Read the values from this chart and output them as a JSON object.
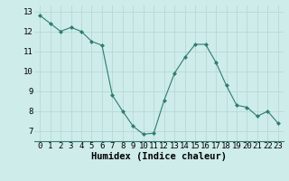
{
  "x": [
    0,
    1,
    2,
    3,
    4,
    5,
    6,
    7,
    8,
    9,
    10,
    11,
    12,
    13,
    14,
    15,
    16,
    17,
    18,
    19,
    20,
    21,
    22,
    23
  ],
  "y": [
    12.8,
    12.4,
    12.0,
    12.2,
    12.0,
    11.5,
    11.3,
    8.8,
    8.0,
    7.25,
    6.85,
    6.9,
    8.55,
    9.9,
    10.7,
    11.35,
    11.35,
    10.45,
    9.3,
    8.3,
    8.2,
    7.75,
    8.0,
    7.4
  ],
  "line_color": "#2e7d6e",
  "marker": "D",
  "marker_size": 2.0,
  "bg_color": "#ceecea",
  "grid_color": "#b8d8d5",
  "xlabel": "Humidex (Indice chaleur)",
  "xlabel_fontsize": 7.5,
  "tick_fontsize": 6.5,
  "ylim": [
    6.5,
    13.3
  ],
  "xlim": [
    -0.5,
    23.5
  ],
  "yticks": [
    7,
    8,
    9,
    10,
    11,
    12,
    13
  ],
  "xticks": [
    0,
    1,
    2,
    3,
    4,
    5,
    6,
    7,
    8,
    9,
    10,
    11,
    12,
    13,
    14,
    15,
    16,
    17,
    18,
    19,
    20,
    21,
    22,
    23
  ]
}
